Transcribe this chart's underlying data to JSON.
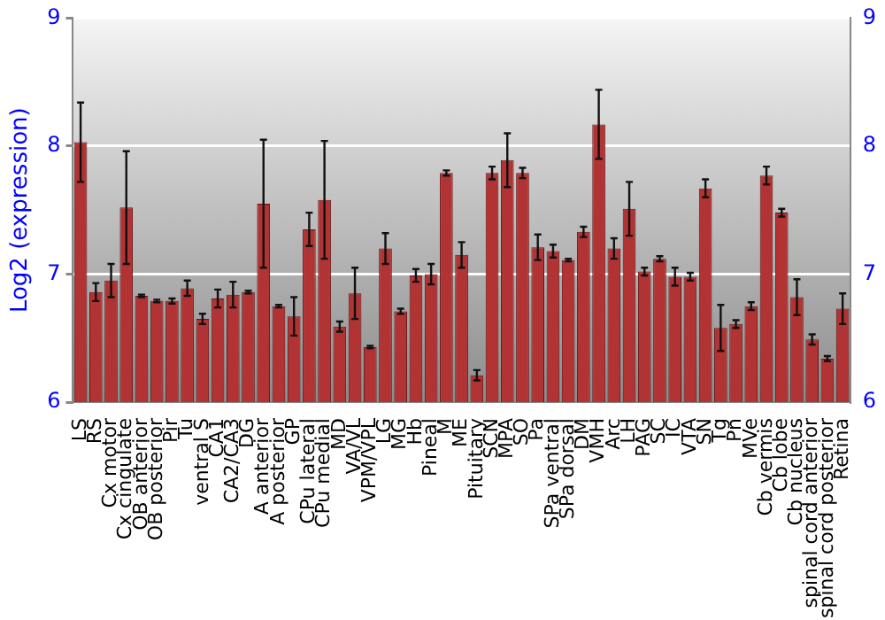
{
  "chart_data": {
    "type": "bar",
    "ylabel": "Log2 (expression)",
    "categories": [
      "LS",
      "RS",
      "Cx motor",
      "Cx cingulate",
      "OB anterior",
      "OB posterior",
      "Pir",
      "Tu",
      "ventral S",
      "CA1",
      "CA2/CA3",
      "DG",
      "A anterior",
      "A posterior",
      "GP",
      "CPu lateral",
      "CPu medial",
      "MD",
      "VA/VL",
      "VPM/VPL",
      "LG",
      "MG",
      "Hb",
      "Pineal",
      "M",
      "ME",
      "Pituitary",
      "SCN",
      "MPA",
      "SO",
      "Pa",
      "SPa ventral",
      "SPa dorsal",
      "DM",
      "VMH",
      "Arc",
      "LH",
      "PAG",
      "SC",
      "IC",
      "VTA",
      "SN",
      "Tg",
      "Pn",
      "MVe",
      "Cb vermis",
      "Cb lobe",
      "Cb nucleus",
      "spinal cord anterior",
      "spinal cord posterior",
      "Retina"
    ],
    "values": [
      8.03,
      6.86,
      6.95,
      7.52,
      6.83,
      6.79,
      6.79,
      6.89,
      6.65,
      6.81,
      6.84,
      6.86,
      7.55,
      6.75,
      6.67,
      7.35,
      7.58,
      6.59,
      6.85,
      6.43,
      7.2,
      6.71,
      6.99,
      7.0,
      7.79,
      7.15,
      6.21,
      7.79,
      7.89,
      7.79,
      7.21,
      7.18,
      7.11,
      7.33,
      8.17,
      7.2,
      7.51,
      7.02,
      7.12,
      6.98,
      6.98,
      7.67,
      6.58,
      6.61,
      6.75,
      7.77,
      7.48,
      6.82,
      6.49,
      6.34,
      6.73
    ],
    "errors": [
      0.31,
      0.07,
      0.13,
      0.44,
      0.01,
      0.01,
      0.02,
      0.06,
      0.04,
      0.07,
      0.1,
      0.01,
      0.5,
      0.01,
      0.15,
      0.13,
      0.46,
      0.04,
      0.2,
      0.01,
      0.12,
      0.02,
      0.05,
      0.08,
      0.02,
      0.1,
      0.04,
      0.05,
      0.21,
      0.04,
      0.1,
      0.05,
      0.01,
      0.04,
      0.27,
      0.08,
      0.21,
      0.03,
      0.02,
      0.07,
      0.03,
      0.07,
      0.18,
      0.03,
      0.03,
      0.07,
      0.03,
      0.14,
      0.04,
      0.02,
      0.12
    ],
    "color": "#b23333",
    "ylim": [
      6,
      9
    ],
    "yticks": [
      6,
      7,
      8,
      9
    ],
    "y2lim": [
      6,
      9
    ],
    "y2ticks": [
      6,
      7,
      8,
      9
    ],
    "grid": "y",
    "legend": false
  }
}
